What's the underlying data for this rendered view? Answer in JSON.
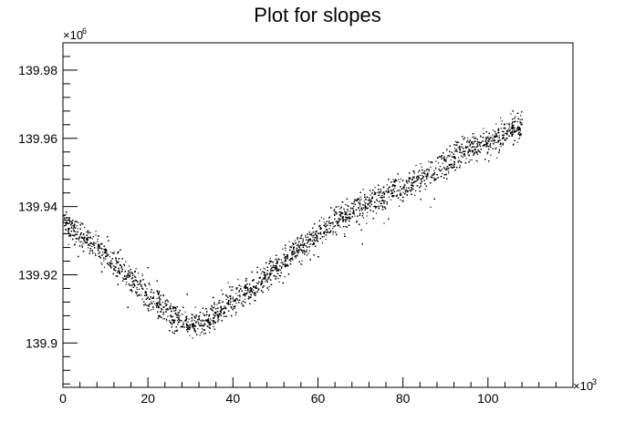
{
  "chart_data": {
    "type": "scatter",
    "title": "Plot for slopes",
    "xlabel": "",
    "ylabel": "",
    "x_multiplier_label": "×10",
    "x_multiplier_exponent": "3",
    "y_multiplier_label": "×10",
    "y_multiplier_exponent": "6",
    "xlim": [
      0,
      120
    ],
    "ylim": [
      139.887,
      139.988
    ],
    "x_ticks": [
      0,
      20,
      40,
      60,
      80,
      100
    ],
    "x_tick_labels": [
      "0",
      "20",
      "40",
      "60",
      "80",
      "100"
    ],
    "y_ticks": [
      139.9,
      139.92,
      139.94,
      139.96,
      139.98
    ],
    "y_tick_labels": [
      "139.9",
      "139.92",
      "139.94",
      "139.96",
      "139.98"
    ],
    "grid": false,
    "legend": "none",
    "point_color": "#000000",
    "series": [
      {
        "x": [
          0,
          5,
          10,
          15,
          20,
          25,
          30,
          35,
          40,
          45,
          50,
          55,
          60,
          65,
          70,
          75,
          80,
          85,
          90,
          95,
          100,
          105,
          108
        ],
        "y": [
          139.936,
          139.931,
          139.926,
          139.92,
          139.914,
          139.909,
          139.905,
          139.908,
          139.913,
          139.917,
          139.922,
          139.927,
          139.932,
          139.937,
          139.94,
          139.943,
          139.946,
          139.949,
          139.953,
          139.957,
          139.959,
          139.962,
          139.964
        ]
      }
    ]
  }
}
